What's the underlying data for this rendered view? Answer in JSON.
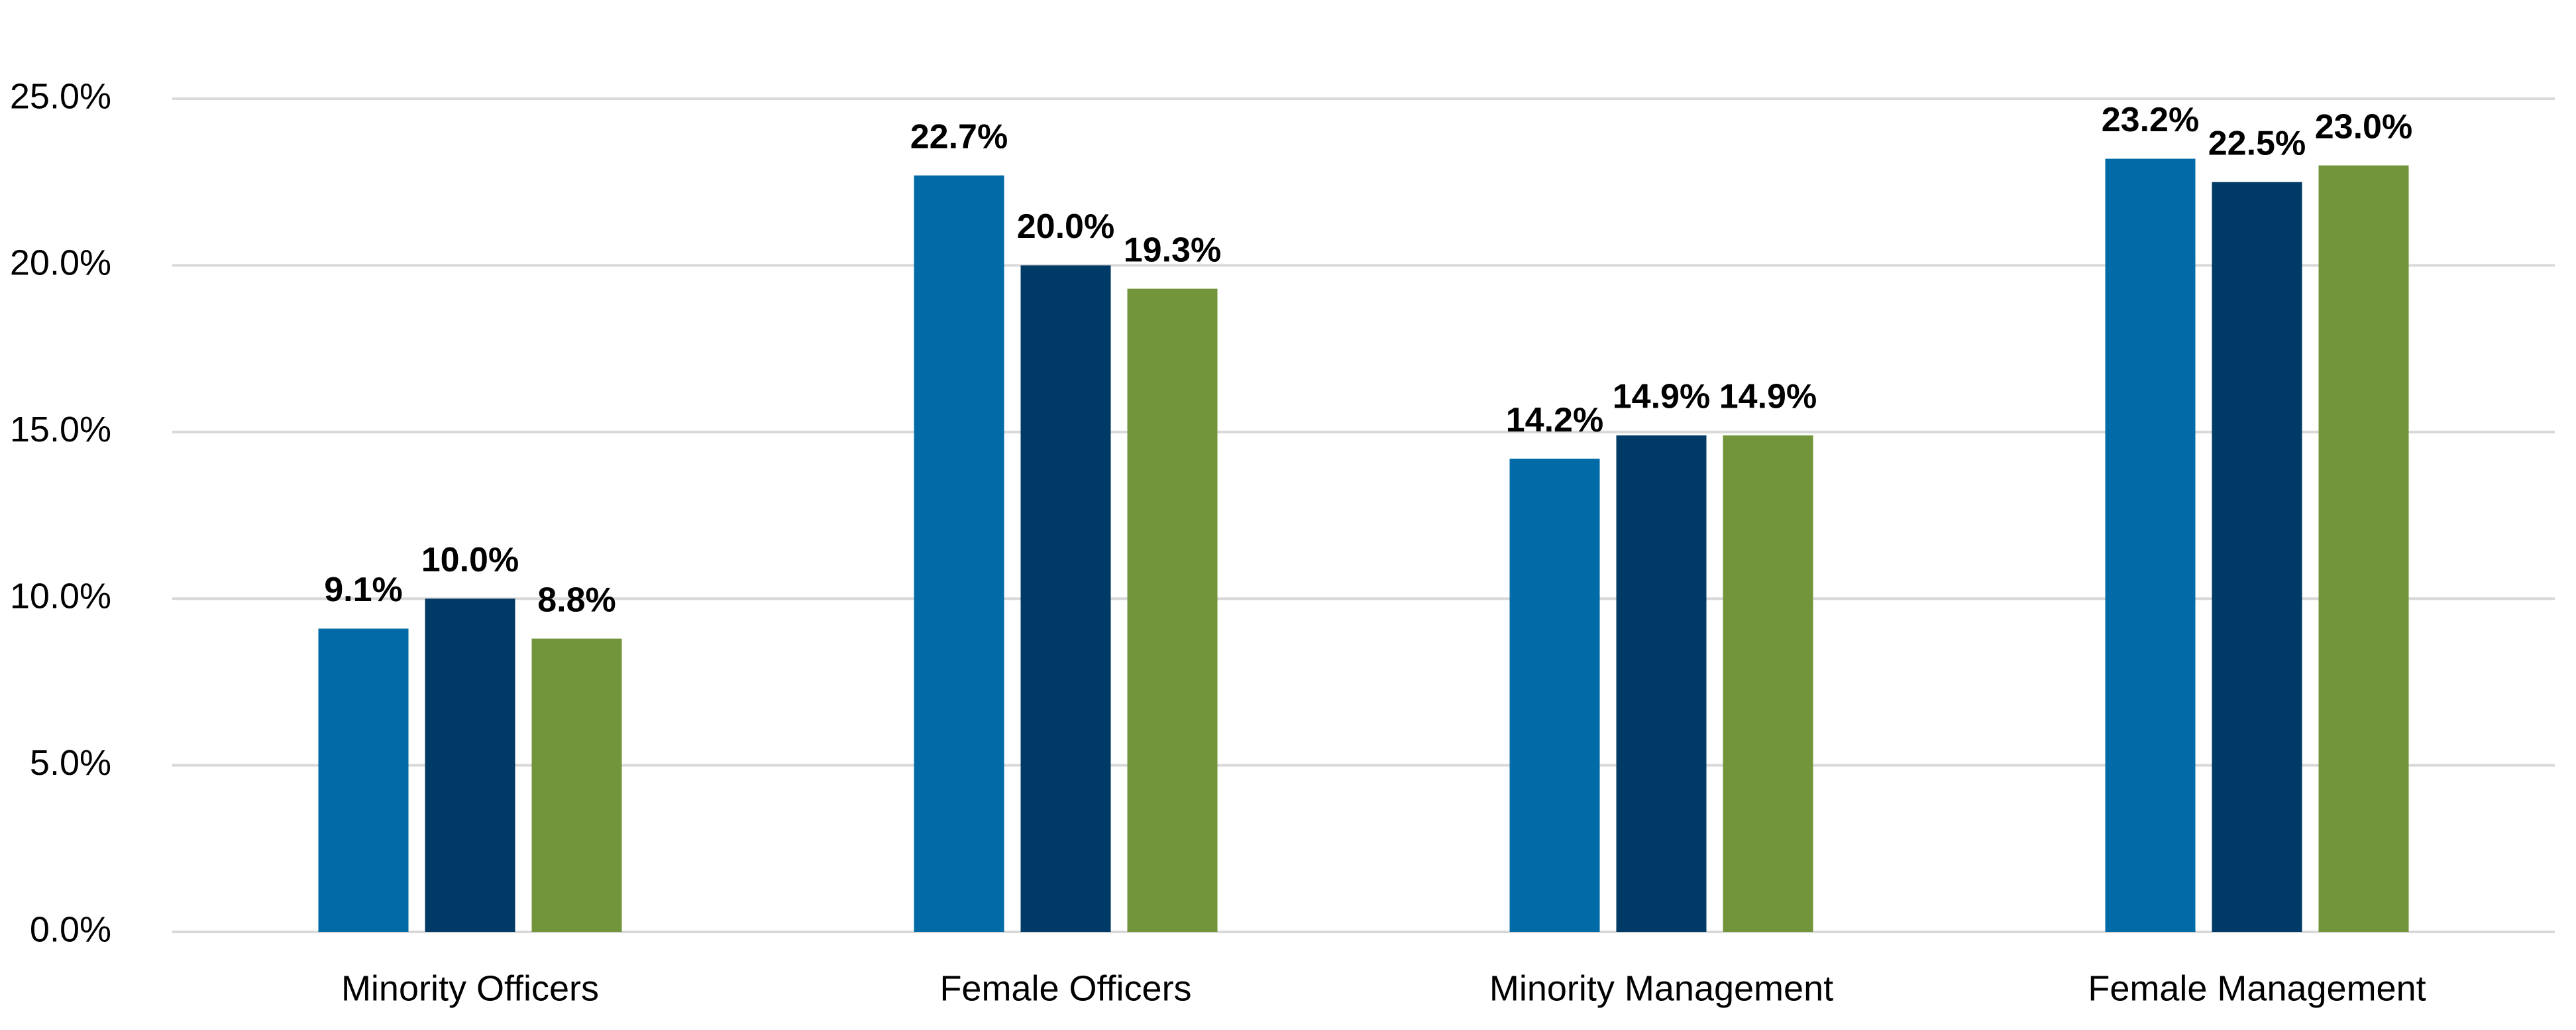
{
  "chart_data": {
    "type": "bar",
    "categories": [
      "Minority Officers",
      "Female Officers",
      "Minority Management",
      "Female Management"
    ],
    "series": [
      {
        "color": "#006ba6",
        "values": [
          9.1,
          22.7,
          14.2,
          23.2
        ],
        "value_labels": [
          "9.1%",
          "22.7%",
          "14.2%",
          "23.2%"
        ]
      },
      {
        "color": "#003a66",
        "values": [
          10.0,
          20.0,
          14.9,
          22.5
        ],
        "value_labels": [
          "10.0%",
          "20.0%",
          "14.9%",
          "22.5%"
        ]
      },
      {
        "color": "#72943a",
        "values": [
          8.8,
          19.3,
          14.9,
          23.0
        ],
        "value_labels": [
          "8.8%",
          "19.3%",
          "14.9%",
          "23.0%"
        ]
      }
    ],
    "ylim": [
      0,
      25
    ],
    "yticks": [
      {
        "value": 0,
        "label": "0.0%"
      },
      {
        "value": 5,
        "label": "5.0%"
      },
      {
        "value": 10,
        "label": "10.0%"
      },
      {
        "value": 15,
        "label": "15.0%"
      },
      {
        "value": 20,
        "label": "20.0%"
      },
      {
        "value": 25,
        "label": "25.0%"
      }
    ],
    "grid": true
  }
}
